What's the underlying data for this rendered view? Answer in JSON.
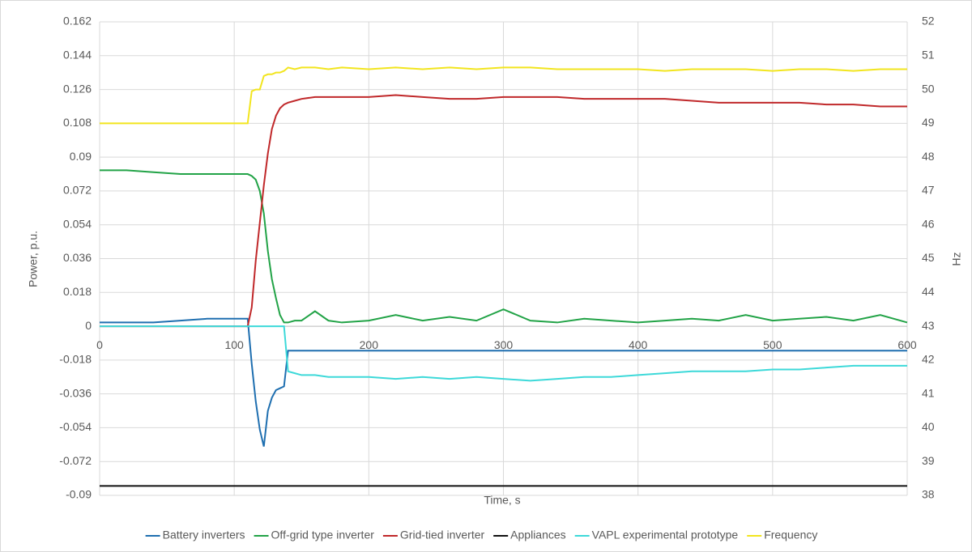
{
  "chart_data": {
    "type": "line",
    "xlabel": "Time, s",
    "ylabel": "Power, p.u.",
    "y2label": "Hz",
    "x": [
      0,
      20,
      40,
      60,
      80,
      100,
      110,
      113,
      116,
      119,
      122,
      125,
      128,
      131,
      134,
      137,
      140,
      145,
      150,
      160,
      170,
      180,
      200,
      220,
      240,
      260,
      280,
      300,
      320,
      340,
      360,
      380,
      400,
      420,
      440,
      460,
      480,
      500,
      520,
      540,
      560,
      580,
      600
    ],
    "xlim": [
      0,
      600
    ],
    "xticks": [
      0,
      100,
      200,
      300,
      400,
      500,
      600
    ],
    "ylim": [
      -0.09,
      0.162
    ],
    "yticks": [
      -0.09,
      -0.072,
      -0.054,
      -0.036,
      -0.018,
      0,
      0.018,
      0.036,
      0.054,
      0.072,
      0.09,
      0.108,
      0.126,
      0.144,
      0.162
    ],
    "y2lim": [
      38,
      52
    ],
    "y2ticks": [
      38,
      39,
      40,
      41,
      42,
      43,
      44,
      45,
      46,
      47,
      48,
      49,
      50,
      51,
      52
    ],
    "grid": true,
    "legend": "bottom",
    "series": [
      {
        "name": "Battery inverters",
        "color": "#1f6fb0",
        "values": [
          0.002,
          0.002,
          0.002,
          0.003,
          0.004,
          0.004,
          0.004,
          -0.02,
          -0.04,
          -0.055,
          -0.064,
          -0.045,
          -0.038,
          -0.034,
          -0.033,
          -0.032,
          -0.013,
          -0.013,
          -0.013,
          -0.013,
          -0.013,
          -0.013,
          -0.013,
          -0.013,
          -0.013,
          -0.013,
          -0.013,
          -0.013,
          -0.013,
          -0.013,
          -0.013,
          -0.013,
          -0.013,
          -0.013,
          -0.013,
          -0.013,
          -0.013,
          -0.013,
          -0.013,
          -0.013,
          -0.013,
          -0.013,
          -0.013
        ]
      },
      {
        "name": "Off-grid type inverter",
        "color": "#22a347",
        "values": [
          0.083,
          0.083,
          0.082,
          0.081,
          0.081,
          0.081,
          0.081,
          0.08,
          0.078,
          0.072,
          0.06,
          0.04,
          0.025,
          0.015,
          0.006,
          0.002,
          0.002,
          0.003,
          0.003,
          0.008,
          0.003,
          0.002,
          0.003,
          0.006,
          0.003,
          0.005,
          0.003,
          0.009,
          0.003,
          0.002,
          0.004,
          0.003,
          0.002,
          0.003,
          0.004,
          0.003,
          0.006,
          0.003,
          0.004,
          0.005,
          0.003,
          0.006,
          0.002
        ]
      },
      {
        "name": "Grid-tied inverter",
        "color": "#c0282a",
        "values": [
          0,
          0,
          0,
          0,
          0,
          0,
          0,
          0.01,
          0.035,
          0.055,
          0.075,
          0.092,
          0.105,
          0.112,
          0.116,
          0.118,
          0.119,
          0.12,
          0.121,
          0.122,
          0.122,
          0.122,
          0.122,
          0.123,
          0.122,
          0.121,
          0.121,
          0.122,
          0.122,
          0.122,
          0.121,
          0.121,
          0.121,
          0.121,
          0.12,
          0.119,
          0.119,
          0.119,
          0.119,
          0.118,
          0.118,
          0.117,
          0.117
        ]
      },
      {
        "name": "Appliances",
        "color": "#111111",
        "values": [
          -0.085,
          -0.085,
          -0.085,
          -0.085,
          -0.085,
          -0.085,
          -0.085,
          -0.085,
          -0.085,
          -0.085,
          -0.085,
          -0.085,
          -0.085,
          -0.085,
          -0.085,
          -0.085,
          -0.085,
          -0.085,
          -0.085,
          -0.085,
          -0.085,
          -0.085,
          -0.085,
          -0.085,
          -0.085,
          -0.085,
          -0.085,
          -0.085,
          -0.085,
          -0.085,
          -0.085,
          -0.085,
          -0.085,
          -0.085,
          -0.085,
          -0.085,
          -0.085,
          -0.085,
          -0.085,
          -0.085,
          -0.085,
          -0.085,
          -0.085
        ]
      },
      {
        "name": "VAPL experimental prototype",
        "color": "#3dd9d9",
        "values": [
          0,
          0,
          0,
          0,
          0,
          0,
          0,
          0,
          0,
          0,
          0,
          0,
          0,
          0,
          0,
          0,
          -0.024,
          -0.025,
          -0.026,
          -0.026,
          -0.027,
          -0.027,
          -0.027,
          -0.028,
          -0.027,
          -0.028,
          -0.027,
          -0.028,
          -0.029,
          -0.028,
          -0.027,
          -0.027,
          -0.026,
          -0.025,
          -0.024,
          -0.024,
          -0.024,
          -0.023,
          -0.023,
          -0.022,
          -0.021,
          -0.021,
          -0.021
        ]
      },
      {
        "name": "Frequency",
        "color": "#f2e51e",
        "axis": "y2",
        "values": [
          49,
          49,
          49,
          49,
          49,
          49,
          49,
          49.95,
          50,
          50,
          50.4,
          50.45,
          50.45,
          50.5,
          50.5,
          50.55,
          50.65,
          50.6,
          50.65,
          50.65,
          50.6,
          50.65,
          50.6,
          50.65,
          50.6,
          50.65,
          50.6,
          50.65,
          50.65,
          50.6,
          50.6,
          50.6,
          50.6,
          50.55,
          50.6,
          50.6,
          50.6,
          50.55,
          50.6,
          50.6,
          50.55,
          50.6,
          50.6
        ]
      }
    ]
  }
}
